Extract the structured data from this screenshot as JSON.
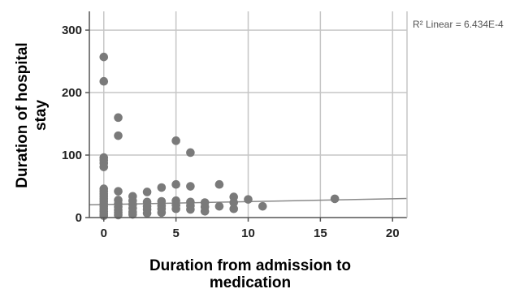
{
  "chart_data": {
    "type": "scatter",
    "title": "",
    "xlabel_lines": [
      "Duration from admission to",
      "medication"
    ],
    "ylabel_lines": [
      "Duration of hospital",
      "stay"
    ],
    "xlim": [
      -1,
      21
    ],
    "ylim": [
      0,
      330
    ],
    "x_ticks": [
      0,
      5,
      10,
      15,
      20
    ],
    "y_ticks": [
      0,
      100,
      200,
      300
    ],
    "grid": true,
    "annotation": "R² Linear = 6.434E-4",
    "fit_line": {
      "x": [
        -1,
        21
      ],
      "y": [
        20.4,
        30.5
      ]
    },
    "colors": {
      "points": "#7a7a7a",
      "line": "#8a8a8a",
      "grid": "#c6c6c6",
      "axis": "#555555"
    },
    "points": [
      {
        "x": 0,
        "y": 257
      },
      {
        "x": 0,
        "y": 218
      },
      {
        "x": 0,
        "y": 96
      },
      {
        "x": 0,
        "y": 92
      },
      {
        "x": 0,
        "y": 87
      },
      {
        "x": 0,
        "y": 81
      },
      {
        "x": 0,
        "y": 46
      },
      {
        "x": 0,
        "y": 42
      },
      {
        "x": 0,
        "y": 38
      },
      {
        "x": 0,
        "y": 34
      },
      {
        "x": 0,
        "y": 30
      },
      {
        "x": 0,
        "y": 26
      },
      {
        "x": 0,
        "y": 22
      },
      {
        "x": 0,
        "y": 18
      },
      {
        "x": 0,
        "y": 14
      },
      {
        "x": 0,
        "y": 10
      },
      {
        "x": 0,
        "y": 6
      },
      {
        "x": 0,
        "y": 3
      },
      {
        "x": 1,
        "y": 160
      },
      {
        "x": 1,
        "y": 131
      },
      {
        "x": 1,
        "y": 42
      },
      {
        "x": 1,
        "y": 28
      },
      {
        "x": 1,
        "y": 22
      },
      {
        "x": 1,
        "y": 17
      },
      {
        "x": 1,
        "y": 12
      },
      {
        "x": 1,
        "y": 8
      },
      {
        "x": 1,
        "y": 4
      },
      {
        "x": 2,
        "y": 34
      },
      {
        "x": 2,
        "y": 27
      },
      {
        "x": 2,
        "y": 21
      },
      {
        "x": 2,
        "y": 15
      },
      {
        "x": 2,
        "y": 9
      },
      {
        "x": 2,
        "y": 5
      },
      {
        "x": 3,
        "y": 41
      },
      {
        "x": 3,
        "y": 25
      },
      {
        "x": 3,
        "y": 18
      },
      {
        "x": 3,
        "y": 13
      },
      {
        "x": 3,
        "y": 7
      },
      {
        "x": 4,
        "y": 48
      },
      {
        "x": 4,
        "y": 26
      },
      {
        "x": 4,
        "y": 19
      },
      {
        "x": 4,
        "y": 14
      },
      {
        "x": 4,
        "y": 8
      },
      {
        "x": 5,
        "y": 123
      },
      {
        "x": 5,
        "y": 53
      },
      {
        "x": 5,
        "y": 27
      },
      {
        "x": 5,
        "y": 20
      },
      {
        "x": 5,
        "y": 14
      },
      {
        "x": 6,
        "y": 104
      },
      {
        "x": 6,
        "y": 50
      },
      {
        "x": 6,
        "y": 25
      },
      {
        "x": 6,
        "y": 19
      },
      {
        "x": 6,
        "y": 13
      },
      {
        "x": 7,
        "y": 24
      },
      {
        "x": 7,
        "y": 17
      },
      {
        "x": 7,
        "y": 10
      },
      {
        "x": 8,
        "y": 53
      },
      {
        "x": 8,
        "y": 18
      },
      {
        "x": 9,
        "y": 33
      },
      {
        "x": 9,
        "y": 24
      },
      {
        "x": 9,
        "y": 14
      },
      {
        "x": 10,
        "y": 29
      },
      {
        "x": 11,
        "y": 18
      },
      {
        "x": 16,
        "y": 30
      }
    ]
  }
}
